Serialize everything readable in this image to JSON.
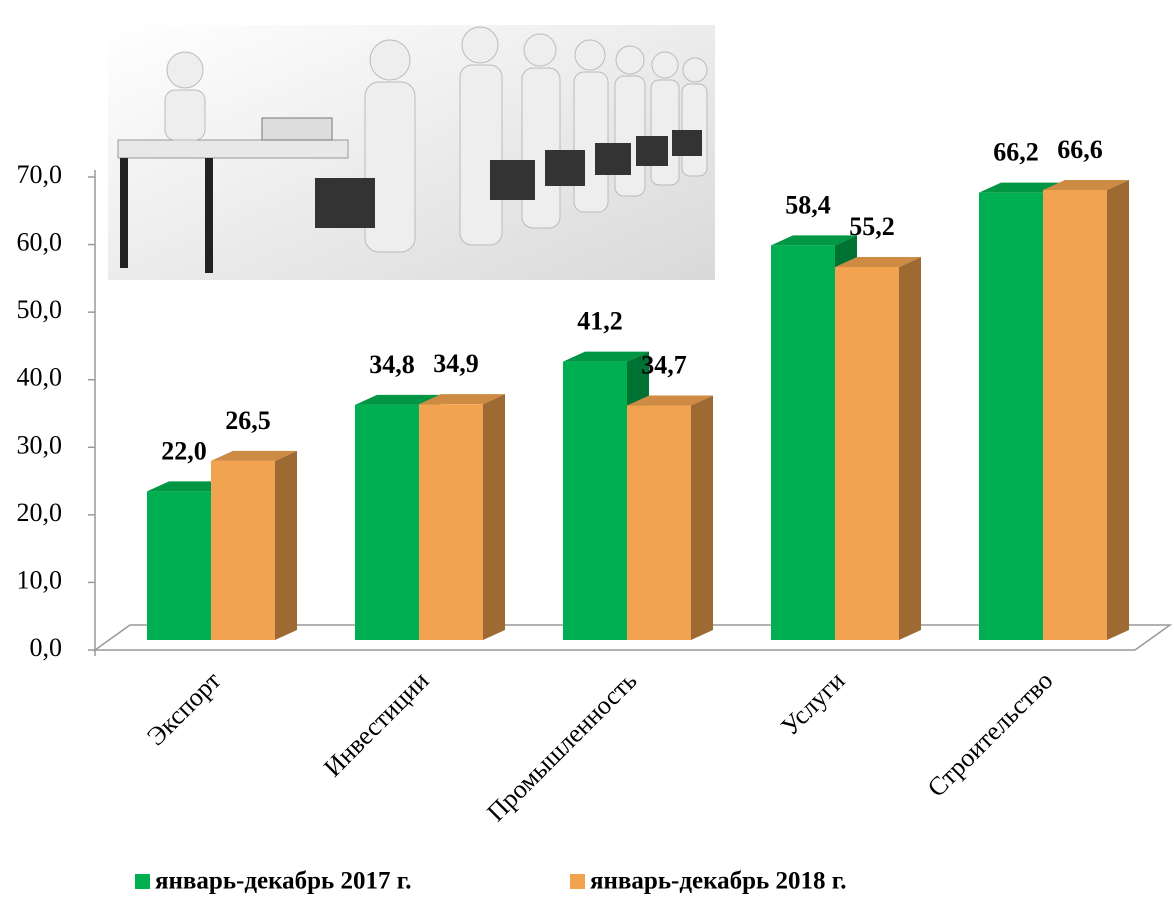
{
  "chart_data": {
    "type": "bar3d",
    "categories": [
      "Экспорт",
      "Инвестиции",
      "Промышленность",
      "Услуги",
      "Строительство"
    ],
    "series": [
      {
        "name": "январь-декабрь 2017 г.",
        "color": "#00b050",
        "values": [
          22.0,
          34.8,
          41.2,
          58.4,
          66.2
        ],
        "value_labels": [
          "22,0",
          "34,8",
          "41,2",
          "58,4",
          "66,2"
        ]
      },
      {
        "name": "январь-декабрь 2018 г.",
        "color": "#f2a350",
        "values": [
          26.5,
          34.9,
          34.7,
          55.2,
          66.6
        ],
        "value_labels": [
          "26,5",
          "34,9",
          "34,7",
          "55,2",
          "66,6"
        ]
      }
    ],
    "ylim": [
      0,
      70
    ],
    "yticks": [
      {
        "value": 0,
        "label": "0,0"
      },
      {
        "value": 10,
        "label": "10,0"
      },
      {
        "value": 20,
        "label": "20,0"
      },
      {
        "value": 30,
        "label": "30,0"
      },
      {
        "value": 40,
        "label": "40,0"
      },
      {
        "value": 50,
        "label": "50,0"
      },
      {
        "value": 60,
        "label": "60,0"
      },
      {
        "value": 70,
        "label": "70,0"
      }
    ]
  }
}
